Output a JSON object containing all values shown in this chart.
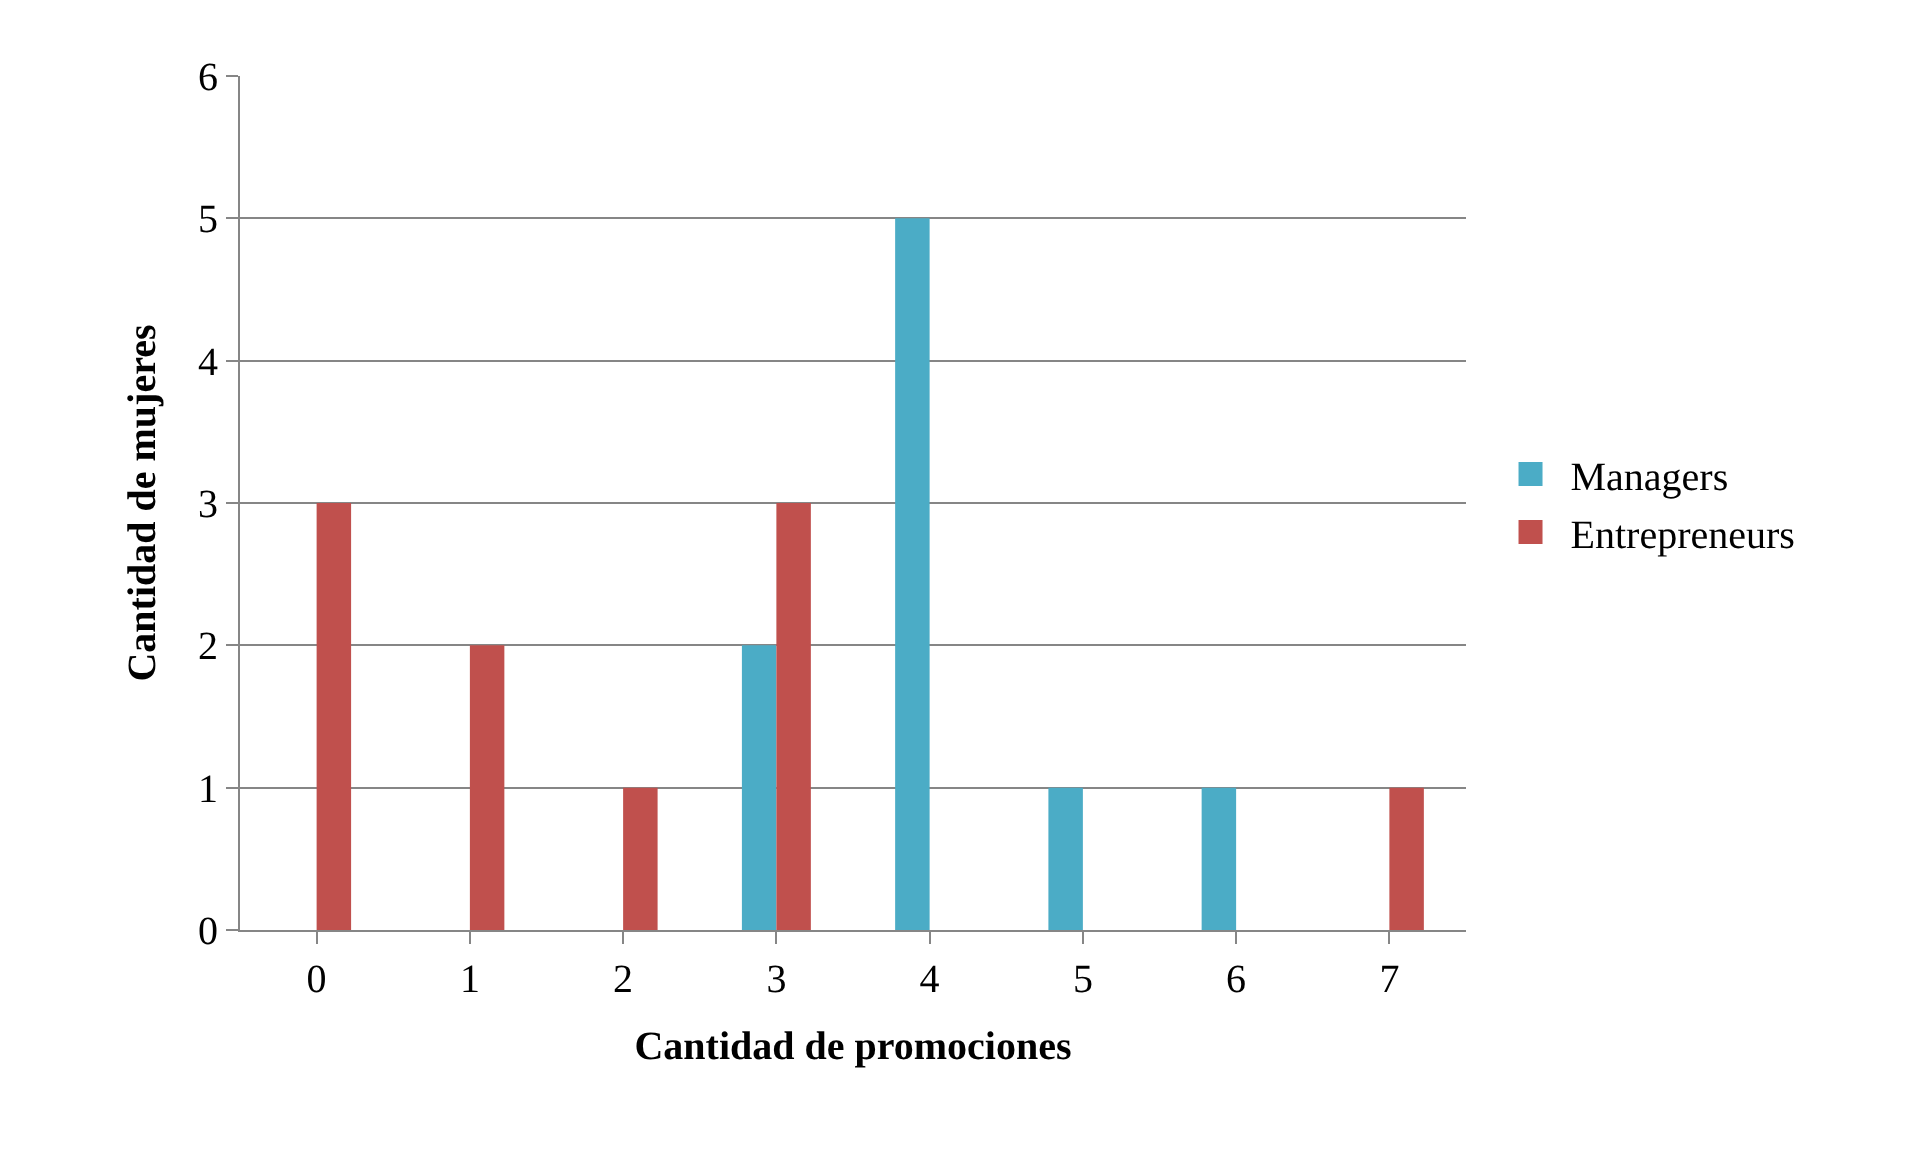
{
  "chart_data": {
    "type": "bar",
    "xlabel": "Cantidad de promociones",
    "ylabel": "Cantidad de mujeres",
    "categories": [
      "0",
      "1",
      "2",
      "3",
      "4",
      "5",
      "6",
      "7"
    ],
    "series": [
      {
        "name": "Managers",
        "color": "#4bacc6",
        "values": [
          0,
          0,
          0,
          2,
          5,
          1,
          1,
          0
        ]
      },
      {
        "name": "Entrepreneurs",
        "color": "#c0504d",
        "values": [
          3,
          2,
          1,
          3,
          0,
          0,
          0,
          1
        ]
      }
    ],
    "ylim": [
      0,
      6
    ],
    "yticks": [
      0,
      1,
      2,
      3,
      4,
      5,
      6
    ],
    "grid": "y",
    "legend": "right"
  }
}
